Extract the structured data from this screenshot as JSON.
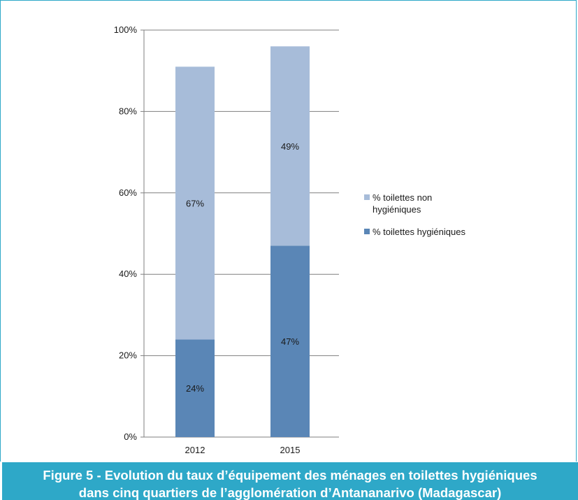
{
  "chart_data": {
    "type": "bar",
    "stacked": true,
    "categories": [
      "2012",
      "2015"
    ],
    "series": [
      {
        "name": "% toilettes hygiéniques",
        "values": [
          24,
          47
        ],
        "labels": [
          "24%",
          "47%"
        ],
        "color": "#5a86b6"
      },
      {
        "name": "% toilettes non hygiéniques",
        "values": [
          67,
          49
        ],
        "labels": [
          "67%",
          "49%"
        ],
        "color": "#a7bcd9"
      }
    ],
    "yticks": [
      "0%",
      "20%",
      "40%",
      "60%",
      "80%",
      "100%"
    ],
    "ylim": [
      0,
      100
    ],
    "grid": true,
    "legend": "right",
    "legend_order": [
      1,
      0
    ],
    "legend_labels": [
      [
        "% toilettes non",
        "hygiéniques"
      ],
      [
        "% toilettes hygiéniques"
      ]
    ]
  },
  "caption": {
    "line1": "Figure 5 - Evolution du taux d’équipement des ménages en toilettes hygiéniques",
    "line2": "dans cinq quartiers de l’agglomération d’Antananarivo (Madagascar)"
  },
  "colors": {
    "accent": "#2ea8c8",
    "grid": "#7f7f7f"
  }
}
